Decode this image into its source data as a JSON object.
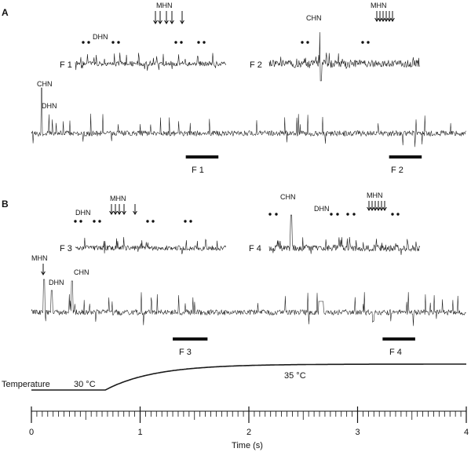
{
  "chart_data": {
    "type": "line",
    "panel_labels": [
      "A",
      "B"
    ],
    "unit_labels": {
      "chn": "CHN",
      "dhn": "DHN",
      "mhn": "MHN"
    },
    "frames": [
      "F 1",
      "F 2",
      "F 3",
      "F 4"
    ],
    "temperature": {
      "label": "Temperature",
      "start_text": "30 °C",
      "end_text": "35 °C",
      "start_c": 30,
      "end_c": 35,
      "ramp_start_s": 0.68,
      "tau_s": 0.45
    },
    "time_axis": {
      "xlabel": "Time (s)",
      "xlim": [
        0,
        4
      ],
      "major_ticks": [
        "0",
        "1",
        "2",
        "3",
        "4"
      ],
      "minor_step_s": 0.05
    },
    "frame_windows_s": {
      "F 1": [
        1.42,
        1.72
      ],
      "F 2": [
        3.29,
        3.59
      ],
      "F 3": [
        1.3,
        1.62
      ],
      "F 4": [
        3.23,
        3.53
      ]
    }
  }
}
